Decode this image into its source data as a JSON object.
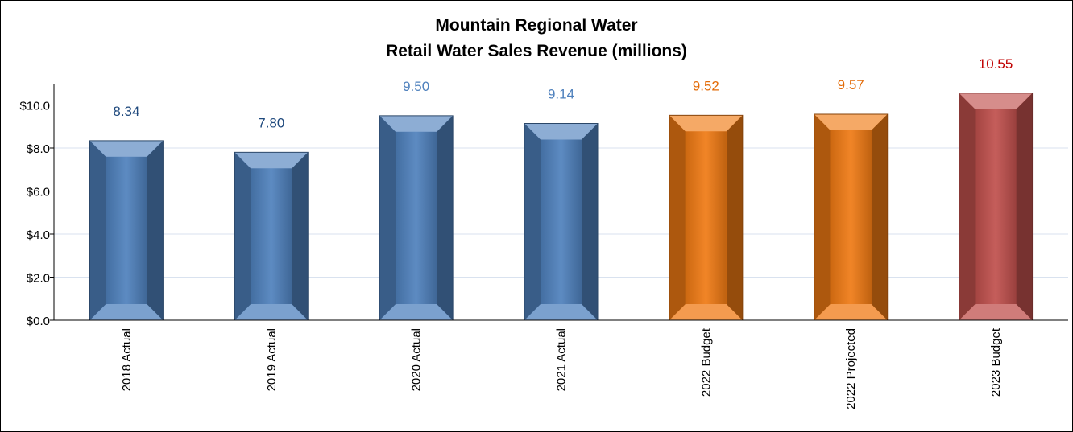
{
  "chart_data": {
    "type": "bar",
    "title": "Mountain Regional Water",
    "subtitle": "Retail Water Sales Revenue (millions)",
    "categories": [
      "2018 Actual",
      "2019 Actual",
      "2020 Actual",
      "2021 Actual",
      "2022 Budget",
      "2022 Projected",
      "2023 Budget"
    ],
    "values": [
      8.34,
      7.8,
      9.5,
      9.14,
      9.52,
      9.57,
      10.55
    ],
    "value_labels": [
      "8.34",
      "7.80",
      "9.50",
      "9.14",
      "9.52",
      "9.57",
      "10.55"
    ],
    "ylim": [
      0,
      11
    ],
    "yticks": [
      0,
      2,
      4,
      6,
      8,
      10
    ],
    "ytick_labels": [
      "$0.0",
      "$2.0",
      "$4.0",
      "$6.0",
      "$8.0",
      "$10.0"
    ],
    "xlabel": "",
    "ylabel": "",
    "grid": true,
    "bar_colors": [
      "#4f81bd",
      "#4f81bd",
      "#4f81bd",
      "#4f81bd",
      "#f07a14",
      "#f07a14",
      "#c0504d"
    ],
    "label_colors": [
      "#1f497d",
      "#1f497d",
      "#4f81bd",
      "#4f81bd",
      "#e36c09",
      "#e36c09",
      "#c00000"
    ]
  }
}
